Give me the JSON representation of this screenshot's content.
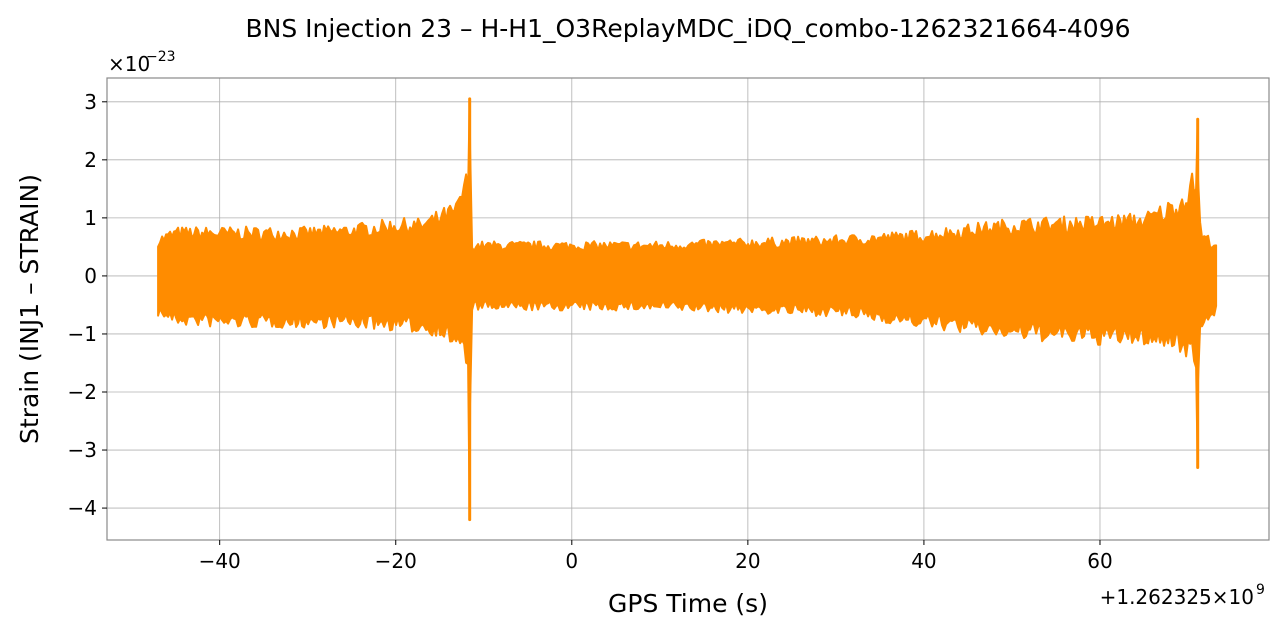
{
  "chart_data": {
    "type": "line",
    "title": "BNS Injection 23 – H-H1_O3ReplayMDC_iDQ_combo-1262321664-4096",
    "xlabel": "GPS Time (s)",
    "ylabel": "Strain (INJ1 – STRAIN)",
    "x_offset_label": "+1.262325×10",
    "x_offset_exp": "9",
    "y_scale_label": "×10",
    "y_scale_exp": "−23",
    "xlim": [
      -52.8,
      79.2
    ],
    "ylim": [
      -4.55,
      3.41
    ],
    "xticks": [
      -40,
      -20,
      0,
      20,
      40,
      60
    ],
    "xtick_labels": [
      "−40",
      "−20",
      "0",
      "20",
      "40",
      "60"
    ],
    "yticks": [
      -4,
      -3,
      -2,
      -1,
      0,
      1,
      2,
      3
    ],
    "ytick_labels": [
      "−4",
      "−3",
      "−2",
      "−1",
      "0",
      "1",
      "2",
      "3"
    ],
    "grid": true,
    "color": "#ff8c00",
    "envelope": {
      "x": [
        -47,
        -45,
        -40,
        -35,
        -30,
        -25,
        -20,
        -17,
        -15,
        -13,
        -12.2,
        -11.7,
        -11.6,
        -11.5,
        -11.4,
        0,
        10,
        20,
        30,
        40,
        50,
        60,
        65,
        69,
        70.5,
        71.0,
        71.1,
        71.2,
        71.5,
        73.3
      ],
      "upper": [
        0.7,
        0.85,
        0.85,
        0.85,
        0.85,
        0.9,
        1.0,
        1.0,
        1.15,
        1.3,
        1.8,
        1.8,
        3.05,
        1.2,
        0.6,
        0.6,
        0.6,
        0.65,
        0.7,
        0.8,
        1.0,
        1.05,
        1.1,
        1.4,
        1.8,
        1.8,
        2.7,
        1.2,
        0.8,
        0.6
      ],
      "lower": [
        -0.7,
        -0.85,
        -0.9,
        -0.9,
        -0.9,
        -0.9,
        -0.95,
        -1.0,
        -1.05,
        -1.3,
        -1.5,
        -1.7,
        -4.2,
        -1.2,
        -0.6,
        -0.6,
        -0.6,
        -0.65,
        -0.7,
        -0.9,
        -1.1,
        -1.2,
        -1.2,
        -1.3,
        -1.5,
        -1.6,
        -3.3,
        -1.2,
        -0.9,
        -0.7
      ]
    }
  }
}
